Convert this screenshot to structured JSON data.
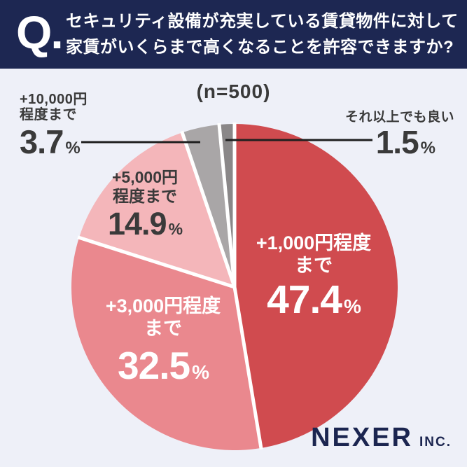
{
  "header": {
    "q_label": "Q.",
    "title_lines": [
      "セキュリティ設備が充実している賃貸物件に対して",
      "家賃がいくらまで高くなることを許容できますか?"
    ]
  },
  "chart_data": {
    "type": "pie",
    "title": "セキュリティ設備が充実している賃貸物件に対して家賃がいくらまで高くなることを許容できますか?",
    "sample_label": "(n=500)",
    "unit": "%",
    "total": 100,
    "start_angle_deg": 0,
    "direction": "clockwise",
    "slices": [
      {
        "label": "+1,000円程度まで",
        "label_lines": [
          "+1,000円程度",
          "まで"
        ],
        "value": 47.4,
        "color": "#d04b4f",
        "text_color": "#ffffff",
        "label_placement": "inside"
      },
      {
        "label": "+3,000円程度まで",
        "label_lines": [
          "+3,000円程度",
          "まで"
        ],
        "value": 32.5,
        "color": "#ea888e",
        "text_color": "#ffffff",
        "label_placement": "inside"
      },
      {
        "label": "+5,000円程度まで",
        "label_lines": [
          "+5,000円",
          "程度まで"
        ],
        "value": 14.9,
        "color": "#f4b6ba",
        "text_color": "#3a3a3a",
        "label_placement": "inside"
      },
      {
        "label": "+10,000円程度まで",
        "label_lines": [
          "+10,000円",
          "程度まで"
        ],
        "value": 3.7,
        "color": "#a9a6a7",
        "text_color": "#3a3a3a",
        "label_placement": "callout-left"
      },
      {
        "label": "それ以上でも良い",
        "label_lines": [
          "それ以上でも良い"
        ],
        "value": 1.5,
        "color": "#8a8788",
        "text_color": "#3a3a3a",
        "label_placement": "callout-right"
      }
    ]
  },
  "percent_symbol": "%",
  "footer": {
    "brand": "NEXER",
    "brand_suffix": "INC."
  },
  "colors": {
    "background": "#eef0f8",
    "header_bg": "#1d2752",
    "header_text": "#ffffff",
    "label_dark": "#3a3a3a",
    "leader_line": "#1f1f1f",
    "separator": "#ffffff",
    "brand": "#1b2550"
  }
}
